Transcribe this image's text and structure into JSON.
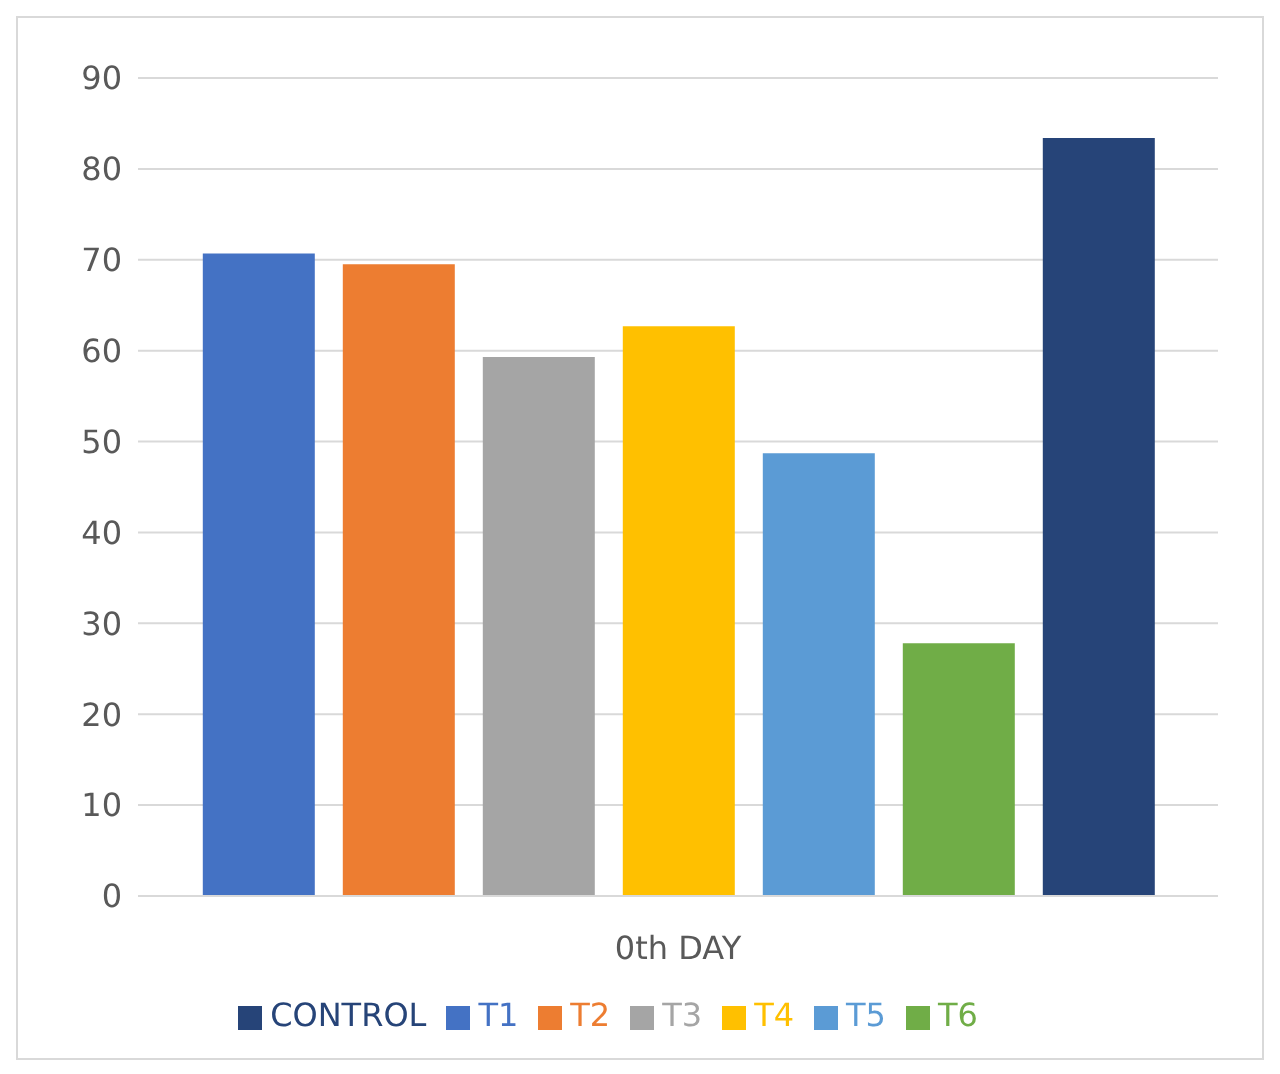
{
  "chart_data": {
    "type": "bar",
    "categories": [
      "0th DAY"
    ],
    "series": [
      {
        "name": "T1",
        "color": "#4472c4",
        "values": [
          70.7
        ]
      },
      {
        "name": "T2",
        "color": "#ed7d31",
        "values": [
          69.5
        ]
      },
      {
        "name": "T3",
        "color": "#a5a5a5",
        "values": [
          59.3
        ]
      },
      {
        "name": "T4",
        "color": "#ffc000",
        "values": [
          62.7
        ]
      },
      {
        "name": "T5",
        "color": "#5b9bd5",
        "values": [
          48.7
        ]
      },
      {
        "name": "T6",
        "color": "#70ad47",
        "values": [
          27.8
        ]
      },
      {
        "name": "CONTROL",
        "color": "#264478",
        "values": [
          83.4
        ]
      }
    ],
    "ylim": [
      0,
      90
    ],
    "yticks": [
      0,
      10,
      20,
      30,
      40,
      50,
      60,
      70,
      80,
      90
    ],
    "grid": "y",
    "legend": "bottom"
  }
}
